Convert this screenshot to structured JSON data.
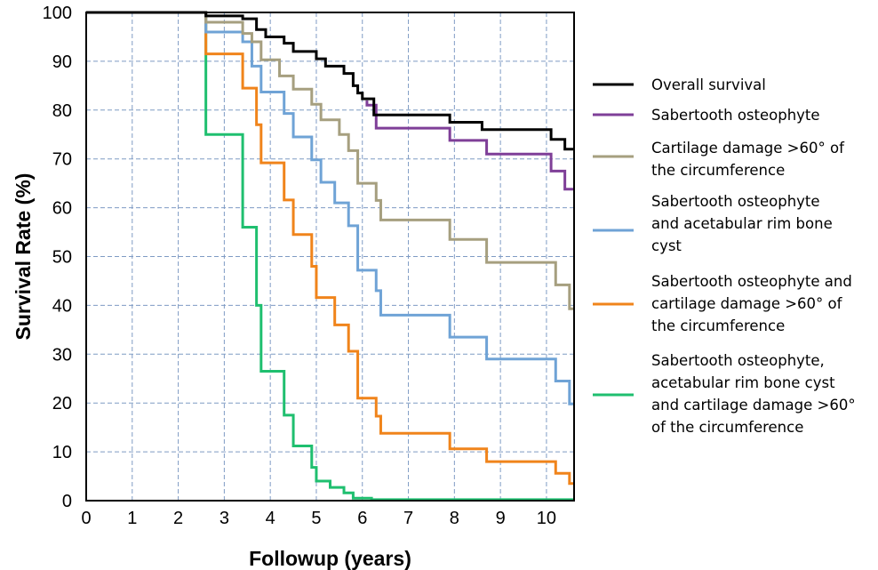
{
  "chart_data": {
    "type": "line",
    "step": true,
    "xlabel": "Followup (years)",
    "ylabel": "Survival Rate (%)",
    "xlim": [
      0,
      10.6
    ],
    "ylim": [
      0,
      100
    ],
    "xticks": [
      0,
      1,
      2,
      3,
      4,
      5,
      6,
      7,
      8,
      9,
      10
    ],
    "yticks": [
      0,
      10,
      20,
      30,
      40,
      50,
      60,
      70,
      80,
      90,
      100
    ],
    "grid": true,
    "legend_position": "right",
    "series": [
      {
        "name": "Overall survival",
        "label_lines": [
          "Overall survival"
        ],
        "color": "#000000",
        "points": [
          [
            0,
            100
          ],
          [
            2.6,
            100
          ],
          [
            2.6,
            99.3
          ],
          [
            3.4,
            99.3
          ],
          [
            3.4,
            98.7
          ],
          [
            3.7,
            98.7
          ],
          [
            3.7,
            96.5
          ],
          [
            3.9,
            96.5
          ],
          [
            3.9,
            95
          ],
          [
            4.3,
            95
          ],
          [
            4.3,
            93.7
          ],
          [
            4.5,
            93.7
          ],
          [
            4.5,
            92
          ],
          [
            5.0,
            92
          ],
          [
            5.0,
            90.5
          ],
          [
            5.2,
            90.5
          ],
          [
            5.2,
            89
          ],
          [
            5.6,
            89
          ],
          [
            5.6,
            87.5
          ],
          [
            5.8,
            87.5
          ],
          [
            5.8,
            85
          ],
          [
            5.9,
            85
          ],
          [
            5.9,
            83.5
          ],
          [
            6.0,
            83.5
          ],
          [
            6.0,
            82.3
          ],
          [
            6.25,
            82.3
          ],
          [
            6.25,
            79
          ],
          [
            7.9,
            79
          ],
          [
            7.9,
            77.5
          ],
          [
            8.6,
            77.5
          ],
          [
            8.6,
            76
          ],
          [
            10.1,
            76
          ],
          [
            10.1,
            74
          ],
          [
            10.4,
            74
          ],
          [
            10.4,
            72
          ],
          [
            10.6,
            72
          ]
        ]
      },
      {
        "name": "Sabertooth osteophyte",
        "label_lines": [
          "Sabertooth osteophyte"
        ],
        "color": "#7f3f98",
        "points": [
          [
            6.1,
            82
          ],
          [
            6.1,
            81
          ],
          [
            6.3,
            81
          ],
          [
            6.3,
            76.3
          ],
          [
            7.9,
            76.3
          ],
          [
            7.9,
            73.8
          ],
          [
            8.7,
            73.8
          ],
          [
            8.7,
            71
          ],
          [
            10.1,
            71
          ],
          [
            10.1,
            67.5
          ],
          [
            10.4,
            67.5
          ],
          [
            10.4,
            63.8
          ],
          [
            10.6,
            63.8
          ]
        ]
      },
      {
        "name": "Cartilage damage >60° of the circumference",
        "label_lines": [
          "Cartilage damage >60° of",
          "the circumference"
        ],
        "color": "#a69f7f",
        "points": [
          [
            0,
            100
          ],
          [
            2.6,
            100
          ],
          [
            2.6,
            98
          ],
          [
            3.4,
            98
          ],
          [
            3.4,
            95.7
          ],
          [
            3.6,
            95.7
          ],
          [
            3.6,
            94
          ],
          [
            3.8,
            94
          ],
          [
            3.8,
            90.3
          ],
          [
            4.2,
            90.3
          ],
          [
            4.2,
            87
          ],
          [
            4.5,
            87
          ],
          [
            4.5,
            84.3
          ],
          [
            4.9,
            84.3
          ],
          [
            4.9,
            81.2
          ],
          [
            5.1,
            81.2
          ],
          [
            5.1,
            78
          ],
          [
            5.5,
            78
          ],
          [
            5.5,
            75
          ],
          [
            5.7,
            75
          ],
          [
            5.7,
            71.7
          ],
          [
            5.9,
            71.7
          ],
          [
            5.9,
            65
          ],
          [
            6.3,
            65
          ],
          [
            6.3,
            61.5
          ],
          [
            6.4,
            61.5
          ],
          [
            6.4,
            57.5
          ],
          [
            7.9,
            57.5
          ],
          [
            7.9,
            53.5
          ],
          [
            8.7,
            53.5
          ],
          [
            8.7,
            48.8
          ],
          [
            10.2,
            48.8
          ],
          [
            10.2,
            44.2
          ],
          [
            10.5,
            44.2
          ],
          [
            10.5,
            39.3
          ],
          [
            10.6,
            39.3
          ]
        ]
      },
      {
        "name": "Sabertooth osteophyte and acetabular rim bone cyst",
        "label_lines": [
          "Sabertooth osteophyte",
          "and acetabular rim bone",
          "cyst"
        ],
        "color": "#6fa3d6",
        "points": [
          [
            0,
            100
          ],
          [
            2.6,
            100
          ],
          [
            2.6,
            96
          ],
          [
            3.4,
            96
          ],
          [
            3.4,
            94
          ],
          [
            3.6,
            94
          ],
          [
            3.6,
            89
          ],
          [
            3.8,
            89
          ],
          [
            3.8,
            83.7
          ],
          [
            4.3,
            83.7
          ],
          [
            4.3,
            79.3
          ],
          [
            4.5,
            79.3
          ],
          [
            4.5,
            74.5
          ],
          [
            4.9,
            74.5
          ],
          [
            4.9,
            69.8
          ],
          [
            5.1,
            69.8
          ],
          [
            5.1,
            65.2
          ],
          [
            5.4,
            65.2
          ],
          [
            5.4,
            61
          ],
          [
            5.7,
            61
          ],
          [
            5.7,
            56.3
          ],
          [
            5.9,
            56.3
          ],
          [
            5.9,
            47.2
          ],
          [
            6.3,
            47.2
          ],
          [
            6.3,
            43
          ],
          [
            6.4,
            43
          ],
          [
            6.4,
            38
          ],
          [
            7.9,
            38
          ],
          [
            7.9,
            33.5
          ],
          [
            8.7,
            33.5
          ],
          [
            8.7,
            29
          ],
          [
            10.2,
            29
          ],
          [
            10.2,
            24.5
          ],
          [
            10.5,
            24.5
          ],
          [
            10.5,
            19.8
          ],
          [
            10.6,
            19.8
          ]
        ]
      },
      {
        "name": "Sabertooth osteophyte and cartilage damage >60° of the circumference",
        "label_lines": [
          "Sabertooth osteophyte and",
          "cartilage damage >60° of",
          "the circumference"
        ],
        "color": "#f0841b",
        "points": [
          [
            0,
            100
          ],
          [
            2.6,
            100
          ],
          [
            2.6,
            91.5
          ],
          [
            3.4,
            91.5
          ],
          [
            3.4,
            84.5
          ],
          [
            3.7,
            84.5
          ],
          [
            3.7,
            77
          ],
          [
            3.8,
            77
          ],
          [
            3.8,
            69.2
          ],
          [
            4.3,
            69.2
          ],
          [
            4.3,
            61.6
          ],
          [
            4.5,
            61.6
          ],
          [
            4.5,
            54.5
          ],
          [
            4.9,
            54.5
          ],
          [
            4.9,
            48
          ],
          [
            5.0,
            48
          ],
          [
            5.0,
            41.6
          ],
          [
            5.4,
            41.6
          ],
          [
            5.4,
            36
          ],
          [
            5.7,
            36
          ],
          [
            5.7,
            30.6
          ],
          [
            5.9,
            30.6
          ],
          [
            5.9,
            21
          ],
          [
            6.3,
            21
          ],
          [
            6.3,
            17.3
          ],
          [
            6.4,
            17.3
          ],
          [
            6.4,
            13.8
          ],
          [
            7.9,
            13.8
          ],
          [
            7.9,
            10.6
          ],
          [
            8.7,
            10.6
          ],
          [
            8.7,
            8
          ],
          [
            10.2,
            8
          ],
          [
            10.2,
            5.6
          ],
          [
            10.5,
            5.6
          ],
          [
            10.5,
            3.5
          ],
          [
            10.6,
            3.5
          ]
        ]
      },
      {
        "name": "Sabertooth osteophyte, acetabular rim bone cyst and cartilage damage >60° of the circumference",
        "label_lines": [
          "Sabertooth osteophyte,",
          "acetabular rim bone cyst",
          "and cartilage damage >60°",
          "of the circumference"
        ],
        "color": "#1fbf6f",
        "points": [
          [
            0,
            100
          ],
          [
            2.6,
            100
          ],
          [
            2.6,
            91
          ],
          [
            2.6,
            75
          ],
          [
            3.4,
            75
          ],
          [
            3.4,
            56
          ],
          [
            3.7,
            56
          ],
          [
            3.7,
            40
          ],
          [
            3.8,
            40
          ],
          [
            3.8,
            26.5
          ],
          [
            4.3,
            26.5
          ],
          [
            4.3,
            17.5
          ],
          [
            4.5,
            17.5
          ],
          [
            4.5,
            11.2
          ],
          [
            4.9,
            11.2
          ],
          [
            4.9,
            6.8
          ],
          [
            5.0,
            6.8
          ],
          [
            5.0,
            4
          ],
          [
            5.3,
            4
          ],
          [
            5.3,
            2.7
          ],
          [
            5.6,
            2.7
          ],
          [
            5.6,
            1.6
          ],
          [
            5.8,
            1.6
          ],
          [
            5.8,
            0.5
          ],
          [
            6.2,
            0.5
          ],
          [
            6.2,
            0.2
          ],
          [
            10.6,
            0.2
          ]
        ]
      }
    ]
  }
}
